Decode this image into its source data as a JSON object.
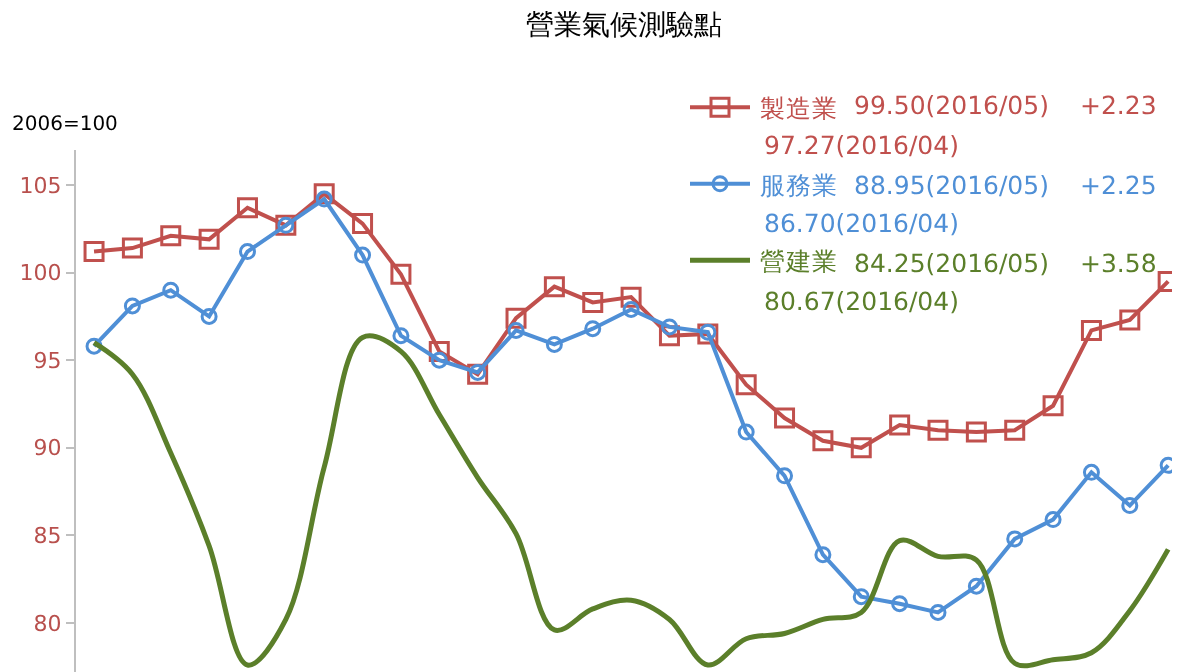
{
  "chart_data": {
    "type": "line",
    "title": "營業氣候測驗點",
    "ylabel": "2006=100",
    "categories": [
      null,
      null,
      null,
      null,
      null,
      null,
      null,
      null,
      null,
      null,
      null,
      null,
      null,
      null,
      null,
      null,
      null,
      null,
      null,
      null,
      null,
      null,
      null,
      null,
      null,
      null,
      null,
      null,
      null
    ],
    "ylim": [
      77.2,
      107
    ],
    "yticks": [
      80,
      85,
      90,
      95,
      100,
      105
    ],
    "legend": "top right",
    "tick_labels": "y",
    "series": [
      {
        "name": "製造業",
        "color": "#c0504d",
        "marker": "square",
        "line_style": "solid",
        "values": [
          101.2,
          101.4,
          102.1,
          101.9,
          103.7,
          102.7,
          104.5,
          102.8,
          99.9,
          95.5,
          94.2,
          97.4,
          99.2,
          98.3,
          98.6,
          96.4,
          96.5,
          93.6,
          91.7,
          90.4,
          90.0,
          91.3,
          91.0,
          90.9,
          91.0,
          92.4,
          96.7,
          97.3,
          99.5
        ]
      },
      {
        "name": "服務業",
        "color": "#4f8fd6",
        "marker": "circle",
        "line_style": "solid",
        "values": [
          95.8,
          98.1,
          99.0,
          97.5,
          101.2,
          102.7,
          104.2,
          101.0,
          96.4,
          95.0,
          94.3,
          96.7,
          95.9,
          96.8,
          97.9,
          96.9,
          96.6,
          90.9,
          88.4,
          83.9,
          81.5,
          81.1,
          80.6,
          82.1,
          84.8,
          85.9,
          88.6,
          86.7,
          89.0
        ]
      },
      {
        "name": "營建業",
        "color": "#5b7f2a",
        "marker": "none",
        "line_style": "solid",
        "values": [
          96.0,
          94.2,
          89.7,
          84.4,
          77.6,
          80.2,
          88.9,
          96.3,
          95.5,
          91.9,
          88.3,
          85.1,
          79.6,
          80.8,
          81.3,
          80.2,
          77.6,
          79.1,
          79.4,
          80.2,
          80.6,
          84.7,
          83.8,
          83.6,
          77.7,
          77.9,
          78.3,
          80.7,
          84.2
        ]
      }
    ],
    "annotations": [
      "99.50(2016/05)",
      "+2.23",
      "97.27(2016/04)",
      "88.95(2016/05)",
      "+2.25",
      "86.70(2016/04)",
      "84.25(2016/05)",
      "+3.58",
      "80.67(2016/04)"
    ]
  }
}
